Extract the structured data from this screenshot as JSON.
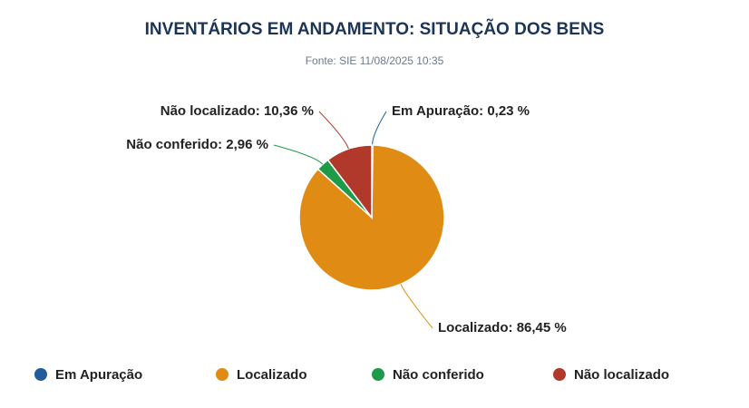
{
  "chart_data": {
    "type": "pie",
    "title": "INVENTÁRIOS EM ANDAMENTO: SITUAÇÃO DOS BENS",
    "subtitle": "Fonte: SIE 11/08/2025 10:35",
    "categories": [
      "Em Apuração",
      "Localizado",
      "Não conferido",
      "Não localizado"
    ],
    "values": [
      0.23,
      86.45,
      2.96,
      10.36
    ],
    "value_labels": [
      "0,23 %",
      "86,45 %",
      "2,96 %",
      "10,36 %"
    ],
    "colors": [
      "#1f5c99",
      "#e08c14",
      "#1e9a48",
      "#b0392b"
    ],
    "legend": "bottom"
  }
}
